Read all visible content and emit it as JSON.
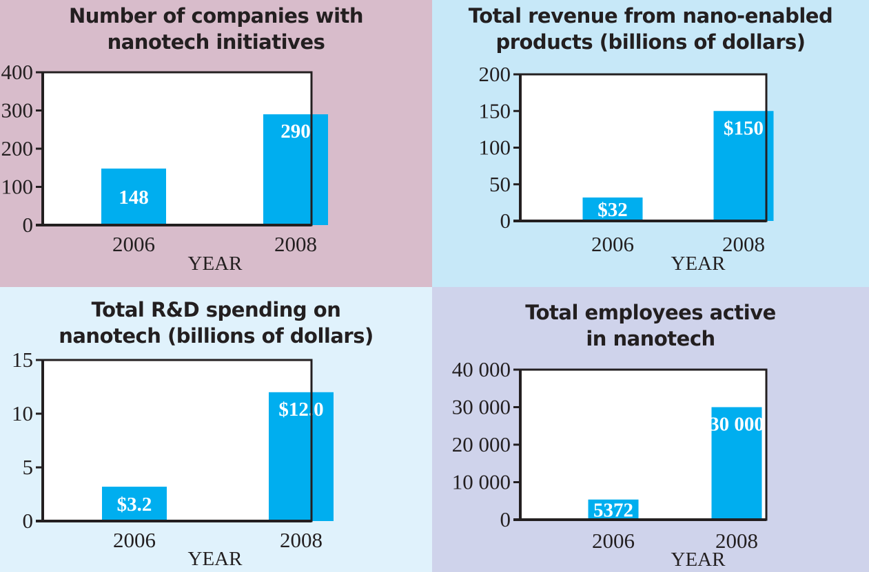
{
  "chart_data": [
    {
      "type": "bar",
      "title": [
        "Number of companies with",
        "nanotech initiatives"
      ],
      "categories": [
        "2006",
        "2008"
      ],
      "values": [
        148,
        290
      ],
      "data_labels": [
        "148",
        "290"
      ],
      "xlabel": "YEAR",
      "ylabel": "",
      "ylim": [
        0,
        400
      ],
      "yticks": [
        0,
        100,
        200,
        300,
        400
      ],
      "ytick_labels": [
        "0",
        "100",
        "200",
        "300",
        "400"
      ],
      "background": "#d8bccb",
      "bar_color": "#00aeef",
      "grid": false
    },
    {
      "type": "bar",
      "title": [
        "Total revenue from nano-enabled",
        "products (billions of dollars)"
      ],
      "categories": [
        "2006",
        "2008"
      ],
      "values": [
        32,
        150
      ],
      "data_labels": [
        "$32",
        "$150"
      ],
      "xlabel": "YEAR",
      "ylabel": "",
      "ylim": [
        0,
        200
      ],
      "yticks": [
        0,
        50,
        100,
        150,
        200
      ],
      "ytick_labels": [
        "0",
        "50",
        "100",
        "150",
        "200"
      ],
      "background": "#c7e8f8",
      "bar_color": "#00aeef",
      "grid": false
    },
    {
      "type": "bar",
      "title": [
        "Total R&D spending on",
        "nanotech (billions of dollars)"
      ],
      "categories": [
        "2006",
        "2008"
      ],
      "values": [
        3.2,
        12.0
      ],
      "data_labels": [
        "$3.2",
        "$12.0"
      ],
      "xlabel": "YEAR",
      "ylabel": "",
      "ylim": [
        0,
        15
      ],
      "yticks": [
        0,
        5,
        10,
        15
      ],
      "ytick_labels": [
        "0",
        "5",
        "10",
        "15"
      ],
      "background": "#e0f2fc",
      "bar_color": "#00aeef",
      "grid": false
    },
    {
      "type": "bar",
      "title": [
        "Total employees active",
        "in nanotech"
      ],
      "categories": [
        "2006",
        "2008"
      ],
      "values": [
        5372,
        30000
      ],
      "data_labels": [
        "5372",
        "30 000"
      ],
      "xlabel": "YEAR",
      "ylabel": "",
      "ylim": [
        0,
        40000
      ],
      "yticks": [
        0,
        10000,
        20000,
        30000,
        40000
      ],
      "ytick_labels": [
        "0",
        "10 000",
        "20 000",
        "30 000",
        "40 000"
      ],
      "background": "#cfd3eb",
      "bar_color": "#00aeef",
      "grid": false
    }
  ]
}
